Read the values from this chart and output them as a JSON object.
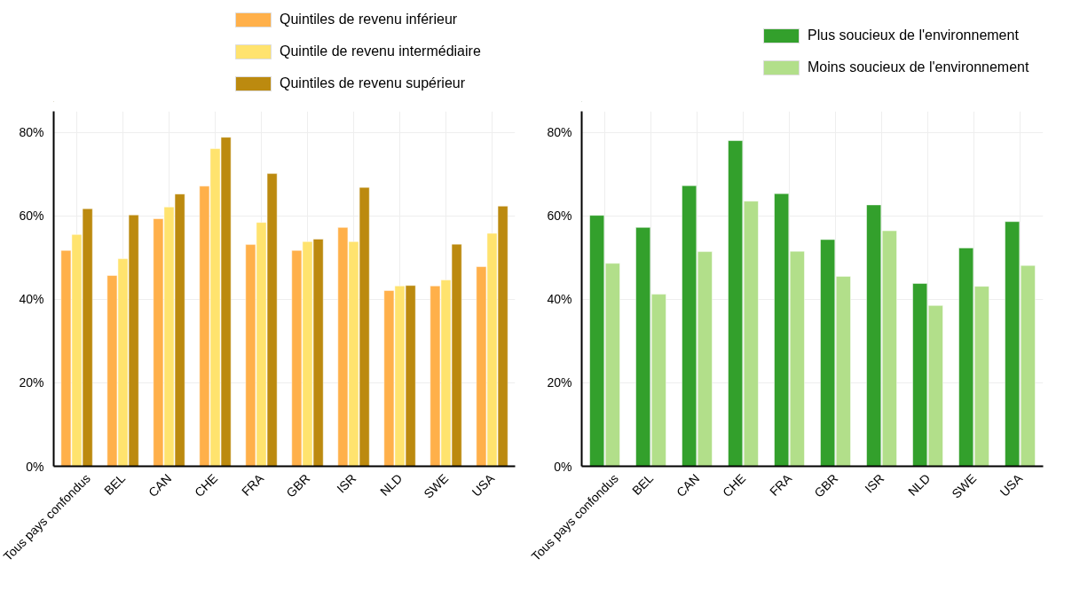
{
  "chart_data": [
    {
      "type": "bar",
      "categories": [
        "Tous pays confondus",
        "BEL",
        "CAN",
        "CHE",
        "FRA",
        "GBR",
        "ISR",
        "NLD",
        "SWE",
        "USA"
      ],
      "series": [
        {
          "name": "Quintiles de revenu inférieur",
          "color": "#ffb04a",
          "values": [
            51.7,
            45.7,
            59.3,
            67.1,
            53.1,
            51.7,
            57.2,
            42.1,
            43.2,
            47.8
          ]
        },
        {
          "name": "Quintile de revenu intermédiaire",
          "color": "#ffe36e",
          "values": [
            55.5,
            49.7,
            62.1,
            76.1,
            58.4,
            53.8,
            53.8,
            43.2,
            44.6,
            55.8
          ]
        },
        {
          "name": "Quintiles de revenu supérieur",
          "color": "#bc8a0f",
          "values": [
            61.7,
            60.2,
            65.2,
            78.8,
            70.1,
            54.4,
            66.8,
            43.3,
            53.2,
            62.3
          ]
        }
      ],
      "ylim": [
        0,
        85
      ],
      "yticks": [
        {
          "value": 0,
          "label": "0%"
        },
        {
          "value": 20,
          "label": "20%"
        },
        {
          "value": 40,
          "label": "40%"
        },
        {
          "value": 60,
          "label": "60%"
        },
        {
          "value": 80,
          "label": "80%"
        }
      ],
      "grid": true,
      "legend": "top"
    },
    {
      "type": "bar",
      "categories": [
        "Tous pays confondus",
        "BEL",
        "CAN",
        "CHE",
        "FRA",
        "GBR",
        "ISR",
        "NLD",
        "SWE",
        "USA"
      ],
      "series": [
        {
          "name": "Plus soucieux de l'environnement",
          "color": "#33a02c",
          "values": [
            60.1,
            57.2,
            67.2,
            78.0,
            65.3,
            54.3,
            62.6,
            43.8,
            52.3,
            58.6
          ]
        },
        {
          "name": "Moins soucieux de l'environnement",
          "color": "#b2df8a",
          "values": [
            48.6,
            41.2,
            51.4,
            63.5,
            51.5,
            45.5,
            56.4,
            38.5,
            43.1,
            48.1
          ]
        }
      ],
      "ylim": [
        0,
        85
      ],
      "yticks": [
        {
          "value": 0,
          "label": "0%"
        },
        {
          "value": 20,
          "label": "20%"
        },
        {
          "value": 40,
          "label": "40%"
        },
        {
          "value": 60,
          "label": "60%"
        },
        {
          "value": 80,
          "label": "80%"
        }
      ],
      "grid": true,
      "legend": "top"
    }
  ]
}
